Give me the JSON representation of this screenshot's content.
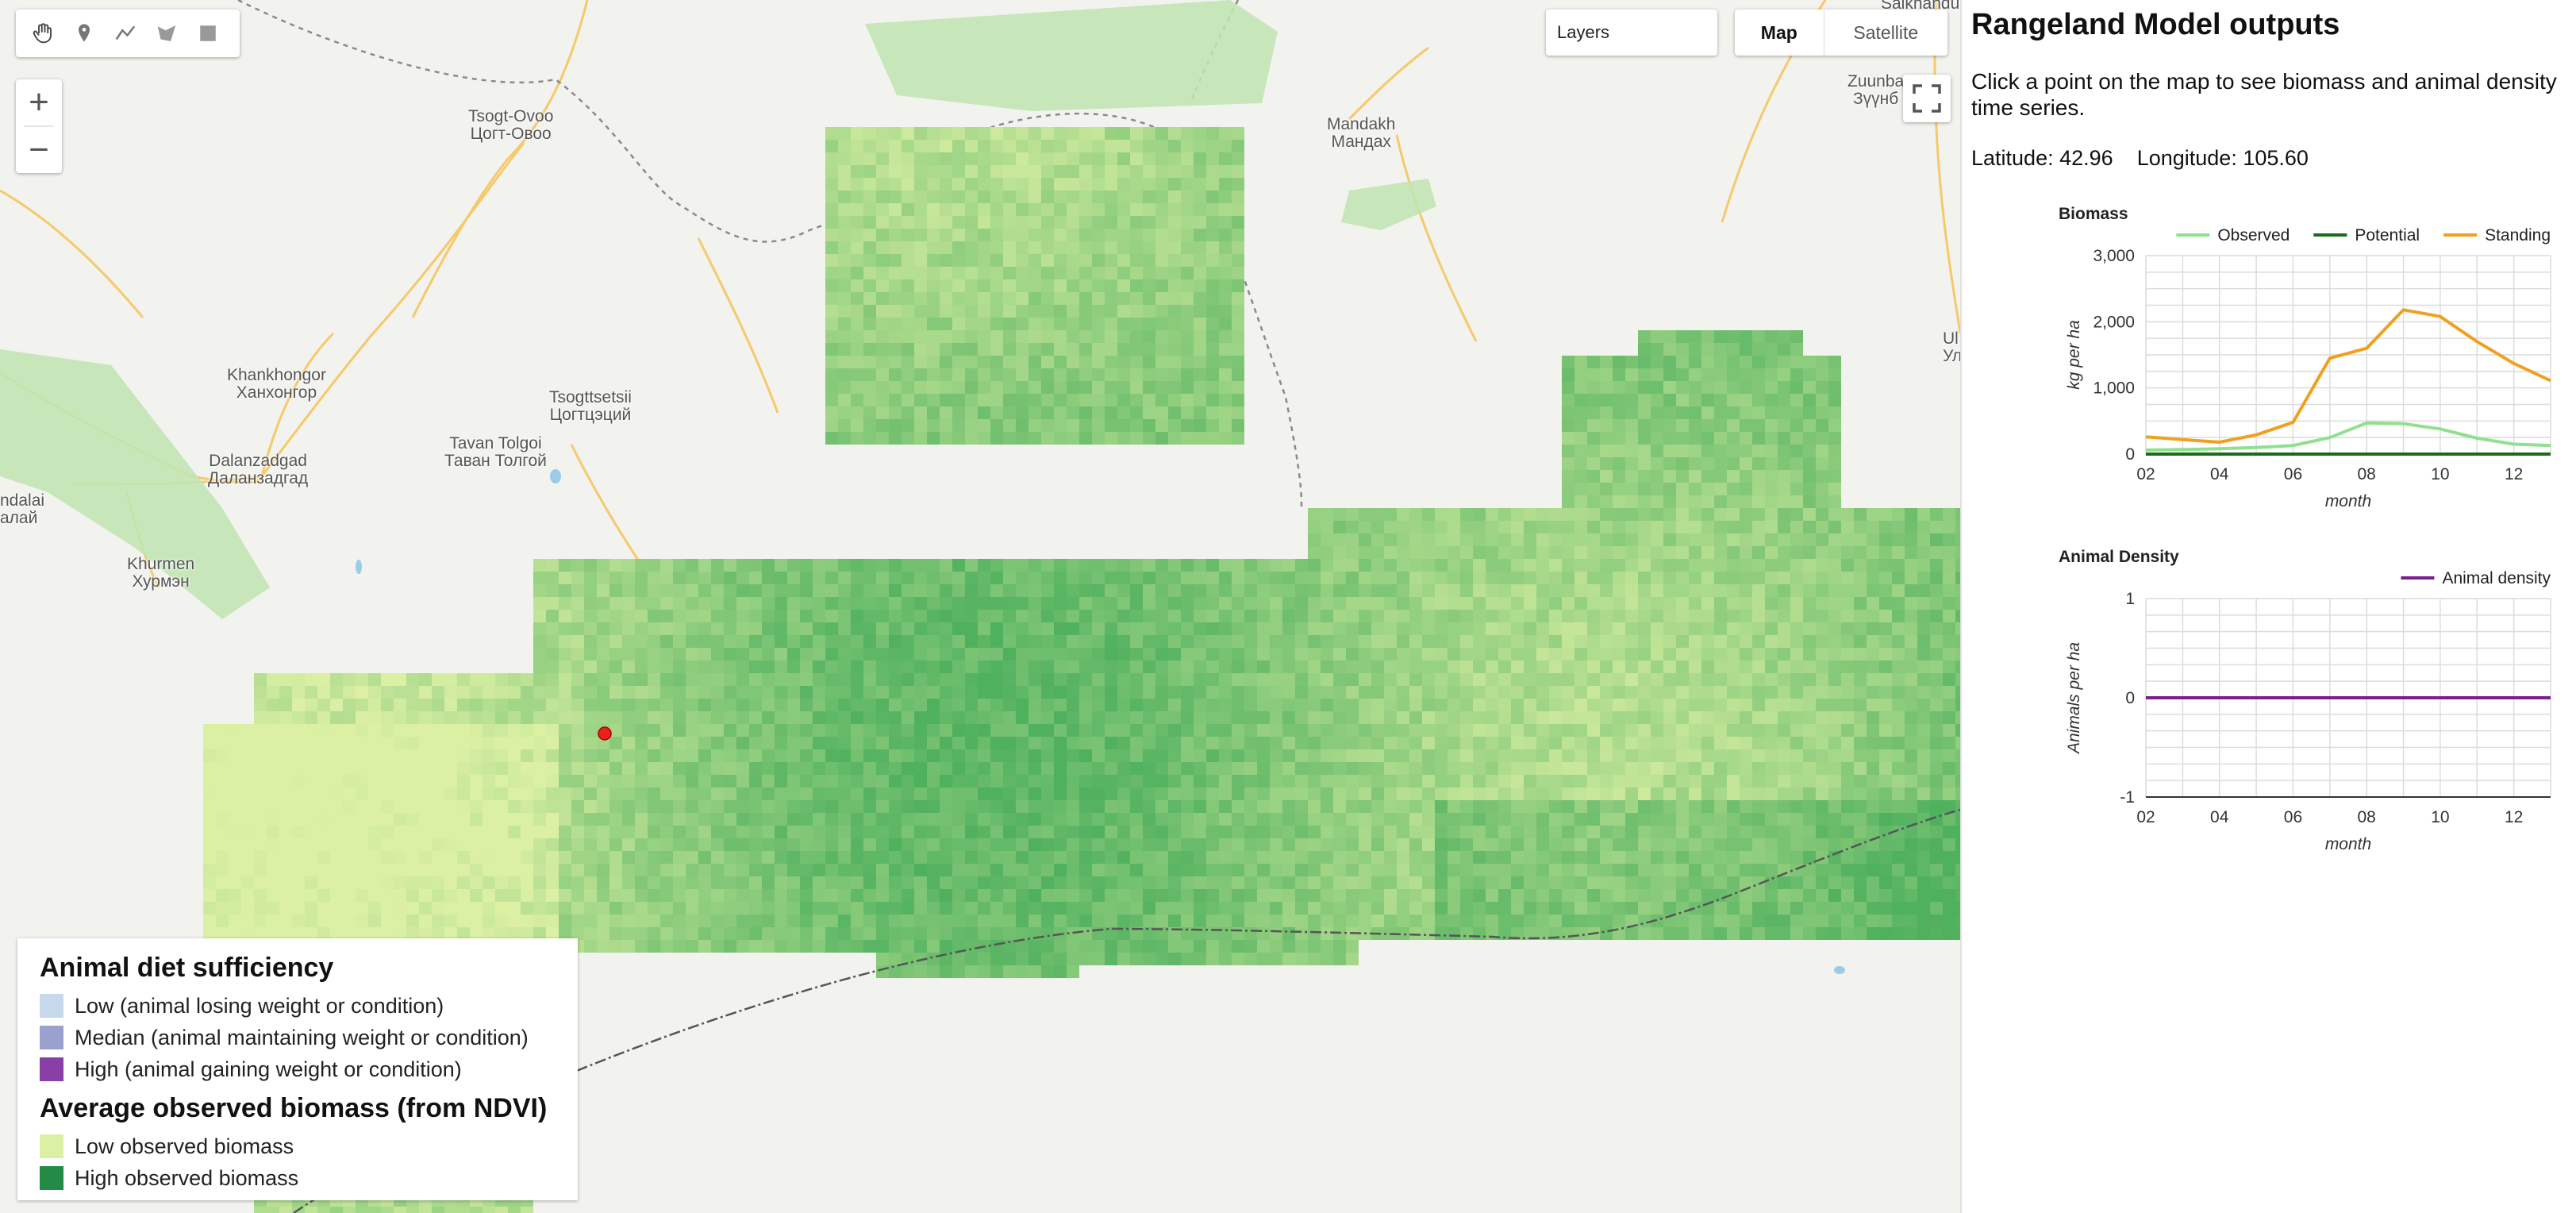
{
  "map": {
    "toolbar": {
      "tools": [
        "hand-icon",
        "marker-icon",
        "line-icon",
        "polygon-icon",
        "rectangle-icon"
      ]
    },
    "zoom": {
      "in_label": "+",
      "out_label": "−"
    },
    "layers_label": "Layers",
    "map_type": {
      "map_label": "Map",
      "satellite_label": "Satellite"
    },
    "places": [
      {
        "id": "tsogt-ovoo",
        "name": "Tsogt-Ovoo",
        "alt": "Цогт-Овоо"
      },
      {
        "id": "mandakh",
        "name": "Mandakh",
        "alt": "Мандах"
      },
      {
        "id": "saikhandulaan",
        "name": "Saikhandulaan",
        "alt": ""
      },
      {
        "id": "zuunbayan",
        "name": "Zuunba",
        "alt": "Зүүнб"
      },
      {
        "id": "khankhongor",
        "name": "Khankhongor",
        "alt": "Ханхонгор"
      },
      {
        "id": "tsogttsetsii",
        "name": "Tsogttsetsii",
        "alt": "Цогтцэций"
      },
      {
        "id": "tavan-tolgoi",
        "name": "Tavan Tolgoi",
        "alt": "Таван Толгой"
      },
      {
        "id": "dalanzadgad",
        "name": "Dalanzadgad",
        "alt": "Даланзадгад"
      },
      {
        "id": "bayandalai",
        "name": "ndalai",
        "alt": "алай"
      },
      {
        "id": "khurmen",
        "name": "Khurmen",
        "alt": "Хурмэн"
      },
      {
        "id": "ul",
        "name": "Ul",
        "alt": "Ул"
      }
    ],
    "selected_point_color": "#e8231b",
    "biomass_palette": {
      "low": "#d8eea0",
      "high": "#2e8b46"
    }
  },
  "legend": {
    "sufficiency_title": "Animal diet sufficiency",
    "sufficiency_items": [
      {
        "label": "Low (animal losing weight or condition)",
        "color": "#c6d9ec"
      },
      {
        "label": "Median (animal maintaining weight or condition)",
        "color": "#9aa1cf"
      },
      {
        "label": "High (animal gaining weight or condition)",
        "color": "#8a3fa6"
      }
    ],
    "biomass_title": "Average observed biomass (from NDVI)",
    "biomass_items": [
      {
        "label": "Low observed biomass",
        "color": "#dbf0a2"
      },
      {
        "label": "High observed biomass",
        "color": "#238b45"
      }
    ]
  },
  "panel": {
    "title": "Rangeland Model outputs",
    "description": "Click a point on the map to see biomass and animal density time series.",
    "latitude_label": "Latitude:",
    "latitude": "42.96",
    "longitude_label": "Longitude:",
    "longitude": "105.60"
  },
  "chart_data": [
    {
      "type": "line",
      "title": "Biomass",
      "xlabel": "month",
      "ylabel": "kg per ha",
      "x": [
        2,
        3,
        4,
        5,
        6,
        7,
        8,
        9,
        10,
        11,
        12,
        13
      ],
      "x_tick_labels": [
        "02",
        "04",
        "06",
        "08",
        "10",
        "12"
      ],
      "x_ticks": [
        2,
        4,
        6,
        8,
        10,
        12
      ],
      "xlim": [
        2,
        13
      ],
      "ylim": [
        0,
        3000
      ],
      "y_ticks": [
        0,
        1000,
        2000,
        3000
      ],
      "y_tick_labels": [
        "0",
        "1,000",
        "2,000",
        "3,000"
      ],
      "legend_position": "top",
      "grid": true,
      "series": [
        {
          "name": "Observed",
          "color": "#90e090",
          "values": [
            60,
            70,
            80,
            100,
            130,
            250,
            470,
            460,
            380,
            240,
            150,
            130
          ]
        },
        {
          "name": "Potential",
          "color": "#1a6b1a",
          "values": [
            0,
            0,
            0,
            0,
            0,
            0,
            0,
            0,
            0,
            0,
            0,
            0
          ]
        },
        {
          "name": "Standing",
          "color": "#f0a020",
          "values": [
            260,
            220,
            180,
            290,
            480,
            1450,
            1600,
            2180,
            2080,
            1700,
            1370,
            1110
          ]
        }
      ]
    },
    {
      "type": "line",
      "title": "Animal Density",
      "xlabel": "month",
      "ylabel": "Animals per ha",
      "x": [
        2,
        3,
        4,
        5,
        6,
        7,
        8,
        9,
        10,
        11,
        12,
        13
      ],
      "x_tick_labels": [
        "02",
        "04",
        "06",
        "08",
        "10",
        "12"
      ],
      "x_ticks": [
        2,
        4,
        6,
        8,
        10,
        12
      ],
      "xlim": [
        2,
        13
      ],
      "ylim": [
        -1,
        1
      ],
      "y_ticks": [
        -1,
        0,
        1
      ],
      "y_tick_labels": [
        "-1",
        "0",
        "1"
      ],
      "legend_position": "top-right",
      "grid": true,
      "series": [
        {
          "name": "Animal density",
          "color": "#7b1f8c",
          "values": [
            0,
            0,
            0,
            0,
            0,
            0,
            0,
            0,
            0,
            0,
            0,
            0
          ]
        }
      ]
    }
  ]
}
